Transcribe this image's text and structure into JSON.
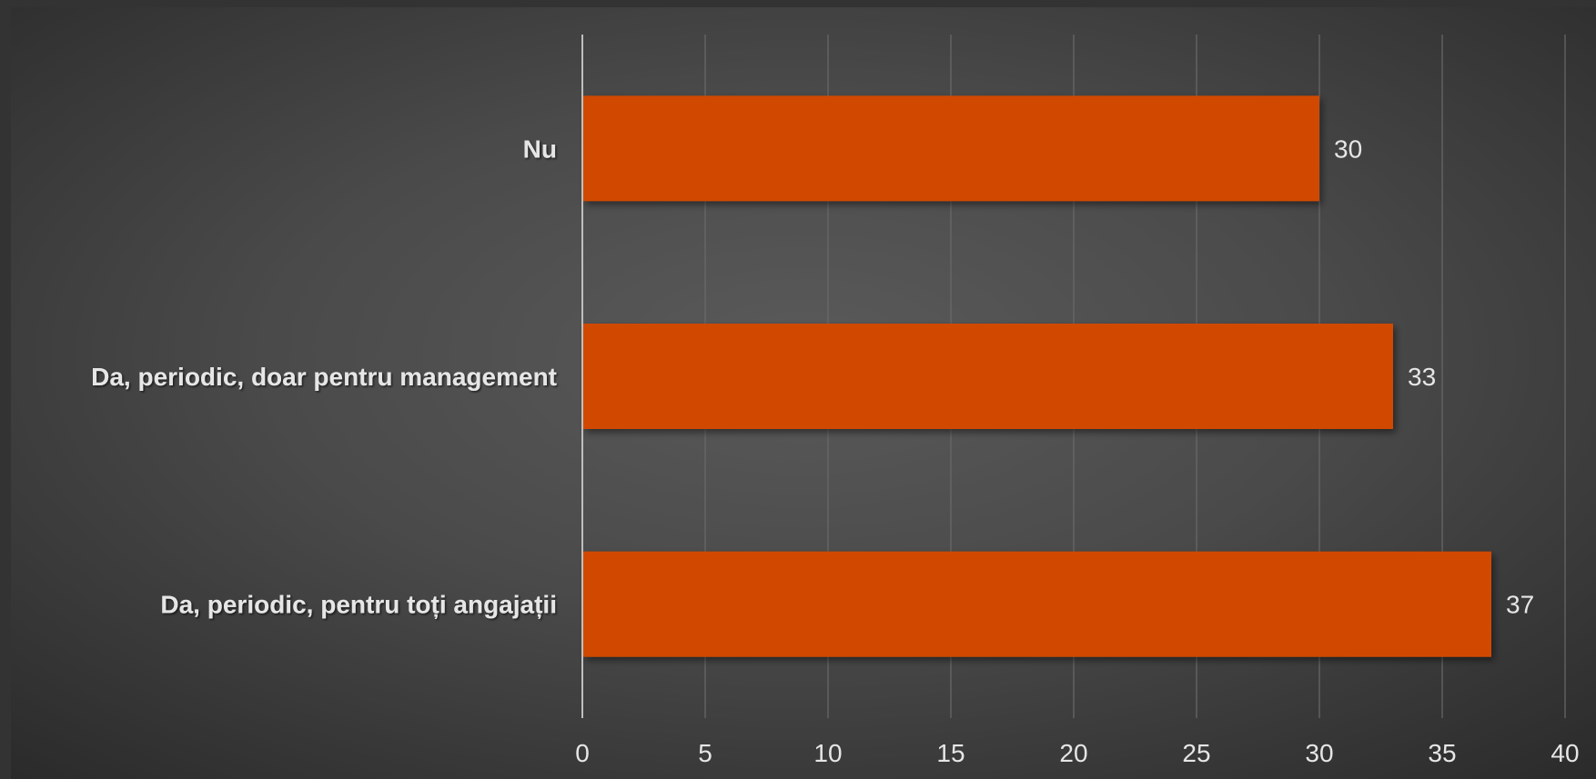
{
  "chart_data": {
    "type": "bar",
    "orientation": "horizontal",
    "title": "",
    "xlabel": "",
    "ylabel": "",
    "categories": [
      "Nu",
      "Da, periodic, doar pentru management",
      "Da, periodic, pentru toți angajații"
    ],
    "values": [
      30,
      33,
      37
    ],
    "xlim": [
      0,
      40
    ],
    "xticks": [
      "0",
      "5",
      "10",
      "15",
      "20",
      "25",
      "30",
      "35",
      "40"
    ],
    "grid": true,
    "legend": "none",
    "data_labels": true
  },
  "colors": {
    "bar": "#d14a02",
    "gridline": "#6a6a6a",
    "axis": "#bfbfbf",
    "text": "#e6e6e6"
  }
}
